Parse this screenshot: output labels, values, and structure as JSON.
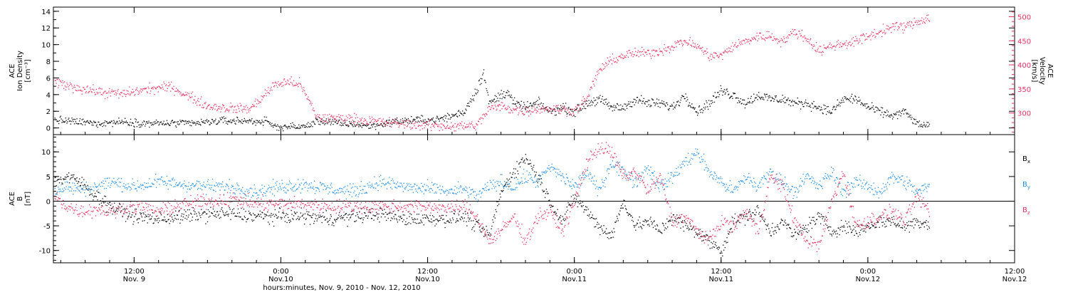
{
  "colors": {
    "density": "#000000",
    "velocity": "#e8305e",
    "bx": "#000000",
    "by": "#1f8fe6",
    "bz": "#e8305e"
  },
  "xlabel": "hours:minutes, Nov. 9, 2010 - Nov. 12, 2010",
  "xticks": [
    {
      "h": 12,
      "line1": "12:00",
      "line2": "Nov. 9"
    },
    {
      "h": 24,
      "line1": "0:00",
      "line2": "Nov.10"
    },
    {
      "h": 36,
      "line1": "12:00",
      "line2": "Nov.10"
    },
    {
      "h": 48,
      "line1": "0:00",
      "line2": "Nov.11"
    },
    {
      "h": 60,
      "line1": "12:00",
      "line2": "Nov.11"
    },
    {
      "h": 72,
      "line1": "0:00",
      "line2": "Nov.12"
    },
    {
      "h": 84,
      "line1": "12:00",
      "line2": "Nov.12"
    }
  ],
  "chart_data": [
    {
      "type": "scatter",
      "panel": "top",
      "xlim": [
        5.4,
        84
      ],
      "xunits": "hours since Nov. 9, 2010 00:00",
      "left_axis": {
        "label_lines": [
          "ACE",
          "Ion Density",
          "[cm⁻³]"
        ],
        "ylim": [
          -0.8,
          14.5
        ],
        "ticks": [
          0,
          2,
          4,
          6,
          8,
          10,
          12,
          14
        ]
      },
      "right_axis": {
        "label_lines": [
          "ACE",
          "Velocity",
          "[km/s]"
        ],
        "ylim": [
          255,
          520
        ],
        "ticks": [
          300,
          350,
          400,
          450,
          500
        ]
      },
      "series": [
        {
          "name": "Ion Density",
          "axis": "left",
          "color_key": "density",
          "x": [
            5.5,
            7,
            9,
            11,
            13,
            15,
            17,
            19,
            21,
            22.8,
            23.5,
            24.5,
            26,
            27,
            28,
            29,
            30,
            31,
            32,
            33,
            34,
            35,
            36,
            37,
            38,
            39,
            39.5,
            40,
            40.5,
            41,
            41.5,
            42,
            42.5,
            43,
            44,
            45,
            46,
            47,
            48,
            49,
            50,
            51,
            52,
            53,
            54,
            55,
            56,
            57,
            58,
            59,
            60,
            61,
            62,
            63,
            64,
            65,
            66,
            67,
            68,
            69,
            70,
            71,
            72,
            73,
            74,
            75,
            76,
            77
          ],
          "y": [
            1.0,
            0.8,
            0.6,
            0.8,
            0.6,
            0.6,
            0.6,
            0.9,
            0.9,
            0.8,
            0.2,
            0.2,
            0.2,
            0.9,
            0.8,
            0.5,
            0.5,
            0.3,
            0.4,
            0.8,
            0.9,
            1.0,
            1.0,
            1.1,
            1.5,
            2.0,
            3.5,
            4.5,
            7.0,
            3.0,
            3.5,
            4.0,
            4.5,
            3.0,
            2.5,
            3.0,
            2.0,
            2.5,
            2.0,
            3.0,
            3.5,
            2.5,
            2.5,
            3.5,
            3.0,
            3.0,
            2.5,
            4.0,
            2.0,
            3.0,
            4.5,
            4.0,
            3.0,
            4.0,
            3.5,
            3.5,
            3.0,
            3.0,
            2.5,
            2.0,
            3.5,
            3.5,
            2.5,
            2.0,
            1.5,
            2.0,
            0.5,
            0.3
          ]
        },
        {
          "name": "Velocity",
          "axis": "right",
          "color_key": "velocity",
          "x": [
            5.5,
            7,
            9,
            11,
            13,
            15,
            16.5,
            18,
            20,
            21.5,
            23.5,
            24.5,
            25.5,
            27,
            28,
            29,
            30,
            32,
            34,
            36,
            38,
            40,
            41,
            42,
            43,
            44,
            45,
            46,
            47,
            48,
            49,
            50,
            51,
            52,
            53,
            54,
            55,
            56,
            57,
            58,
            59,
            60,
            61,
            62,
            63,
            64,
            65,
            66,
            67,
            68,
            69,
            70,
            71,
            72,
            73,
            74,
            75,
            76,
            77
          ],
          "y": [
            365,
            355,
            345,
            340,
            350,
            355,
            335,
            315,
            310,
            310,
            360,
            365,
            362,
            290,
            290,
            290,
            288,
            282,
            278,
            275,
            273,
            275,
            310,
            315,
            308,
            305,
            310,
            310,
            308,
            305,
            330,
            390,
            410,
            420,
            425,
            425,
            430,
            440,
            450,
            440,
            420,
            420,
            440,
            450,
            460,
            460,
            450,
            470,
            455,
            430,
            440,
            445,
            450,
            460,
            470,
            480,
            480,
            490,
            500
          ]
        }
      ]
    },
    {
      "type": "scatter",
      "panel": "bottom",
      "xlim": [
        5.4,
        84
      ],
      "xunits": "hours since Nov. 9, 2010 00:00",
      "left_axis": {
        "label_lines": [
          "ACE",
          "B",
          "[nT]"
        ],
        "ylim": [
          -12.5,
          13.5
        ],
        "ticks": [
          -10,
          -5,
          0,
          5,
          10
        ]
      },
      "zero_line": true,
      "legend": {
        "placement": "right",
        "entries": [
          {
            "key": "bx",
            "label": "B",
            "sub": "x"
          },
          {
            "key": "by",
            "label": "B",
            "sub": "y"
          },
          {
            "key": "bz",
            "label": "B",
            "sub": "z"
          }
        ]
      },
      "series": [
        {
          "name": "Bx",
          "color_key": "bx",
          "x": [
            5.5,
            6.5,
            7.5,
            9,
            10,
            12,
            14,
            16,
            18,
            20,
            22,
            24,
            26,
            28,
            30,
            32,
            34,
            36,
            38,
            39,
            40,
            41,
            42,
            43,
            44,
            45,
            46,
            47,
            48,
            49,
            50,
            51,
            52,
            53,
            54,
            55,
            56,
            57,
            58,
            59,
            60,
            61,
            62,
            63,
            64,
            65,
            66,
            67,
            68,
            69,
            70,
            71,
            72,
            73,
            74,
            75,
            76,
            77
          ],
          "y": [
            4.0,
            5.0,
            4.0,
            1.0,
            -1.0,
            -3.0,
            -3.5,
            -3.0,
            -2.5,
            -2.5,
            -3.0,
            -3.0,
            -3.0,
            -3.5,
            -3.0,
            -2.5,
            -3.5,
            -3.5,
            -3.5,
            -3.0,
            -5.0,
            -7.0,
            2.0,
            6.0,
            9.0,
            5.0,
            0.0,
            -4.0,
            1.0,
            -2.0,
            -5.0,
            -7.0,
            0.0,
            -5.0,
            -4.0,
            -6.0,
            -3.0,
            -5.0,
            -6.0,
            -8.0,
            -10.0,
            -4.0,
            -3.0,
            -2.0,
            -6.0,
            -4.0,
            -7.0,
            -5.0,
            -3.0,
            -6.0,
            -5.0,
            -6.0,
            -5.0,
            -4.0,
            -4.0,
            -5.0,
            -4.0,
            -4.5
          ]
        },
        {
          "name": "By",
          "color_key": "by",
          "x": [
            5.5,
            6.5,
            7.5,
            9,
            10,
            12,
            14,
            16,
            18,
            20,
            22,
            24,
            26,
            28,
            30,
            32,
            34,
            36,
            38,
            39,
            40,
            41,
            42,
            43,
            44,
            45,
            46,
            47,
            48,
            49,
            50,
            51,
            52,
            53,
            54,
            55,
            56,
            57,
            58,
            59,
            60,
            61,
            62,
            63,
            64,
            65,
            66,
            67,
            68,
            69,
            70,
            71,
            72,
            73,
            74,
            75,
            76,
            77
          ],
          "y": [
            2.0,
            3.0,
            2.5,
            3.0,
            4.0,
            3.0,
            4.0,
            3.5,
            3.0,
            3.0,
            2.0,
            3.0,
            3.5,
            2.5,
            2.0,
            4.0,
            3.0,
            2.5,
            2.0,
            2.5,
            1.0,
            3.0,
            4.0,
            3.0,
            5.0,
            4.0,
            7.0,
            5.0,
            3.0,
            6.0,
            2.0,
            8.0,
            6.0,
            4.0,
            7.0,
            3.0,
            5.0,
            8.0,
            10.0,
            6.0,
            4.0,
            2.0,
            5.0,
            3.0,
            6.0,
            4.0,
            2.0,
            5.0,
            3.0,
            6.0,
            2.0,
            4.0,
            3.0,
            2.0,
            5.0,
            4.0,
            2.0,
            3.0
          ]
        },
        {
          "name": "Bz",
          "color_key": "bz",
          "x": [
            5.5,
            6.5,
            7.5,
            9,
            10,
            12,
            14,
            16,
            18,
            20,
            22,
            24,
            26,
            28,
            30,
            32,
            34,
            36,
            38,
            39,
            40,
            41,
            42,
            43,
            44,
            45,
            46,
            47,
            48,
            49,
            50,
            51,
            52,
            53,
            54,
            55,
            56,
            57,
            58,
            59,
            60,
            61,
            62,
            63,
            64,
            65,
            66,
            67,
            68,
            69,
            70,
            71,
            72,
            73,
            74,
            75,
            76,
            77
          ],
          "y": [
            1.0,
            -1.0,
            -2.0,
            -1.5,
            -2.0,
            -1.0,
            -2.0,
            -0.5,
            0.0,
            0.5,
            -0.5,
            -0.5,
            -0.5,
            -1.0,
            -1.0,
            -1.0,
            -1.0,
            -1.0,
            -1.5,
            -1.0,
            -3.0,
            -8.0,
            -6.0,
            -3.0,
            -8.0,
            -3.0,
            -2.0,
            -6.0,
            0.0,
            8.0,
            11.0,
            10.0,
            5.0,
            6.0,
            2.0,
            5.0,
            -4.0,
            -3.0,
            -6.0,
            -8.0,
            -4.0,
            -5.0,
            -2.0,
            -6.0,
            5.0,
            3.0,
            -4.0,
            -8.0,
            -9.0,
            0.0,
            6.0,
            -5.0,
            -4.0,
            -3.0,
            -2.0,
            -4.0,
            1.0,
            -2.0
          ]
        }
      ]
    }
  ]
}
